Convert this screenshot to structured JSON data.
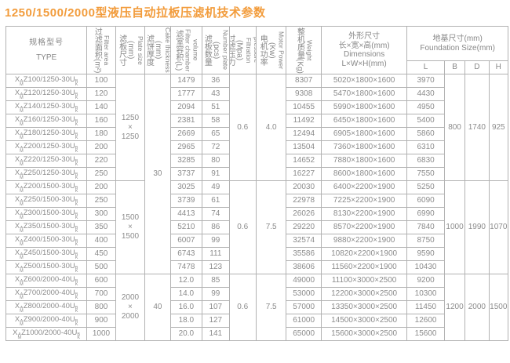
{
  "title": "1250/1500/2000型液压自动拉板压滤机技术参数",
  "table": {
    "header": {
      "type": {
        "zh": "规格型号",
        "en": "TYPE"
      },
      "filter_area": {
        "zh": "过滤面积(m²)",
        "en": "Filter area"
      },
      "plate_size": {
        "zh": "滤板尺寸(mm)",
        "en": "Plate size"
      },
      "cake_thickness": {
        "zh": "滤饼厚度(mm)",
        "en": "Cake thickness"
      },
      "chamber_volume": {
        "zh": "滤室容积(L)",
        "en": "Filter chamber volume"
      },
      "plate_number": {
        "zh": "滤板数量(pcs)",
        "en": "Number plate"
      },
      "pressure": {
        "zh": "过滤压力(Mpa)",
        "en": "Filtration pressure"
      },
      "motor_power": {
        "zh": "电机功率(Kw)",
        "en": "Motor Power"
      },
      "weight": {
        "zh": "整机质量(Kg)",
        "en": "Weight"
      },
      "dimensions": {
        "zh": "外形尺寸",
        "zh2": "长×宽×高(mm)",
        "en": "Dimensions",
        "en2": "L×W×H(mm)"
      },
      "foundation": {
        "zh": "地基尺寸(mm)",
        "en": "Foundation Size(mm)",
        "cols": [
          "L",
          "B",
          "D",
          "H"
        ]
      }
    },
    "model_format": {
      "prefix": "X",
      "prefix_stack": [
        "A",
        "M"
      ],
      "suffix_stack": [
        "B",
        "K"
      ]
    },
    "groups": [
      {
        "start": 0,
        "count": 8,
        "plate_size": [
          "1250",
          "×",
          "1250"
        ],
        "pressure": "0.6",
        "motor": "4.0",
        "B": "800",
        "D": "1740",
        "H": "925"
      },
      {
        "start": 8,
        "count": 7,
        "plate_size": [
          "1500",
          "×",
          "1500"
        ],
        "pressure": "0.6",
        "motor": "7.5",
        "B": "1000",
        "D": "1990",
        "H": "1070"
      },
      {
        "start": 15,
        "count": 5,
        "plate_size": [
          "2000",
          "×",
          "2000"
        ],
        "pressure": "0.6",
        "motor": "7.5",
        "B": "1200",
        "D": "2000",
        "H": "1500"
      }
    ],
    "cake_spans": [
      {
        "start": 0,
        "count": 15,
        "value": "30"
      },
      {
        "start": 15,
        "count": 5,
        "value": "40"
      }
    ],
    "rows": [
      {
        "model": "Z100/1250-30U",
        "area": "100",
        "volume": "1479",
        "plates": "36",
        "weight": "8307",
        "dim": "5020×1800×1600",
        "L": "3970"
      },
      {
        "model": "Z120/1250-30U",
        "area": "120",
        "volume": "1777",
        "plates": "43",
        "weight": "9308",
        "dim": "5470×1800×1600",
        "L": "4430"
      },
      {
        "model": "Z140/1250-30U",
        "area": "140",
        "volume": "2094",
        "plates": "51",
        "weight": "10455",
        "dim": "5990×1800×1600",
        "L": "4950"
      },
      {
        "model": "Z160/1250-30U",
        "area": "160",
        "volume": "2381",
        "plates": "58",
        "weight": "11492",
        "dim": "6450×1800×1600",
        "L": "5400"
      },
      {
        "model": "Z180/1250-30U",
        "area": "180",
        "volume": "2669",
        "plates": "65",
        "weight": "12494",
        "dim": "6905×1800×1600",
        "L": "5860"
      },
      {
        "model": "Z200/1250-30U",
        "area": "200",
        "volume": "2965",
        "plates": "72",
        "weight": "13504",
        "dim": "7360×1800×1600",
        "L": "6310"
      },
      {
        "model": "Z220/1250-30U",
        "area": "220",
        "volume": "3285",
        "plates": "80",
        "weight": "14652",
        "dim": "7880×1800×1600",
        "L": "6830"
      },
      {
        "model": "Z250/1250-30U",
        "area": "250",
        "volume": "3737",
        "plates": "91",
        "weight": "16227",
        "dim": "8600×1800×1600",
        "L": "7550"
      },
      {
        "model": "Z200/1500-30U",
        "area": "200",
        "volume": "3025",
        "plates": "49",
        "weight": "20030",
        "dim": "6400×2200×1900",
        "L": "5250"
      },
      {
        "model": "Z250/1500-30U",
        "area": "250",
        "volume": "3739",
        "plates": "61",
        "weight": "22978",
        "dim": "7225×2200×1900",
        "L": "6090"
      },
      {
        "model": "Z300/1500-30U",
        "area": "300",
        "volume": "4413",
        "plates": "74",
        "weight": "26026",
        "dim": "8130×2200×1900",
        "L": "6990"
      },
      {
        "model": "Z350/1500-30U",
        "area": "350",
        "volume": "5210",
        "plates": "86",
        "weight": "29220",
        "dim": "8570×2200×1900",
        "L": "7840"
      },
      {
        "model": "Z400/1500-30U",
        "area": "400",
        "volume": "6007",
        "plates": "99",
        "weight": "32574",
        "dim": "9880×2200×1900",
        "L": "8750"
      },
      {
        "model": "Z450/1500-30U",
        "area": "450",
        "volume": "6743",
        "plates": "111",
        "weight": "35586",
        "dim": "10820×2200×1900",
        "L": "9590"
      },
      {
        "model": "Z500/1500-30U",
        "area": "500",
        "volume": "7478",
        "plates": "123",
        "weight": "38606",
        "dim": "11560×2200×1900",
        "L": "10430"
      },
      {
        "model": "Z600/2000-40U",
        "area": "600",
        "volume": "12.0",
        "plates": "85",
        "weight": "49000",
        "dim": "11100×3000×2500",
        "L": "9200"
      },
      {
        "model": "Z700/2000-40U",
        "area": "700",
        "volume": "14.0",
        "plates": "99",
        "weight": "53000",
        "dim": "12200×3000×2500",
        "L": "10300"
      },
      {
        "model": "Z800/2000-40U",
        "area": "800",
        "volume": "16.0",
        "plates": "107",
        "weight": "57000",
        "dim": "13350×3000×2500",
        "L": "11450"
      },
      {
        "model": "Z900/2000-40U",
        "area": "900",
        "volume": "18.0",
        "plates": "127",
        "weight": "61000",
        "dim": "14500×3000×2500",
        "L": "12600"
      },
      {
        "model": "Z1000/2000-40U",
        "area": "1000",
        "volume": "20.0",
        "plates": "141",
        "weight": "65000",
        "dim": "15600×3000×2500",
        "L": "15600"
      }
    ]
  }
}
